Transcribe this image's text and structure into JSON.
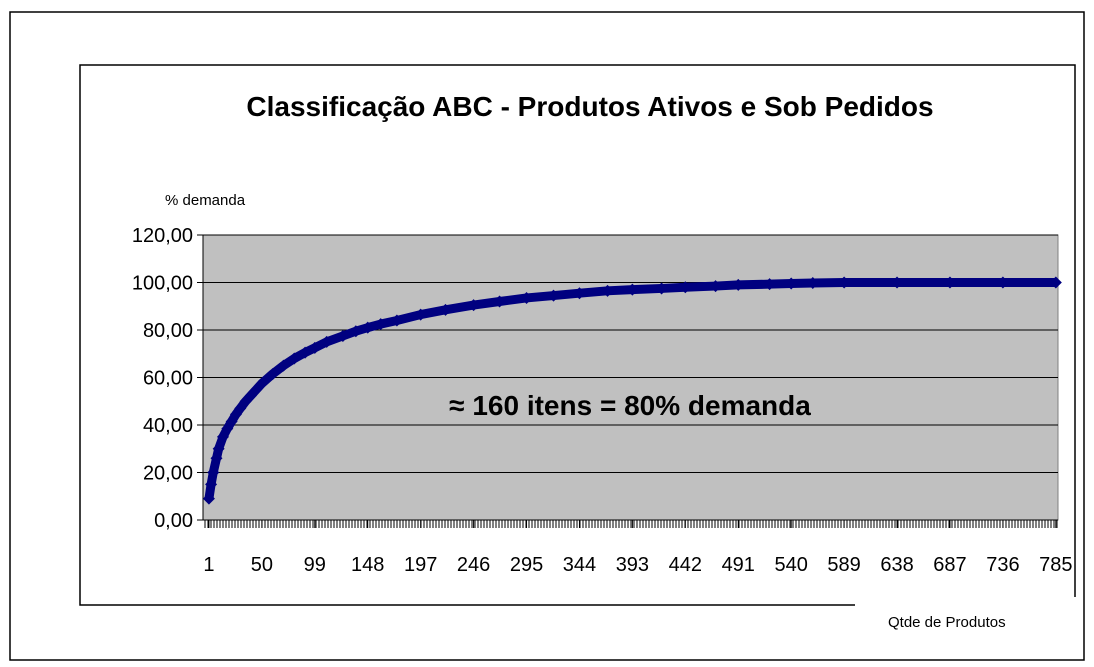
{
  "chart_data": {
    "type": "line",
    "title": "Classificação ABC - Produtos Ativos e Sob Pedidos",
    "y_label": "% demanda",
    "x_label": "Qtde de Produtos",
    "annotation": "≈ 160 itens = 80% demanda",
    "x": [
      1,
      3,
      5,
      8,
      10,
      14,
      18,
      22,
      26,
      30,
      35,
      40,
      45,
      50,
      60,
      70,
      80,
      90,
      99,
      110,
      125,
      137,
      148,
      160,
      175,
      197,
      220,
      246,
      270,
      295,
      320,
      344,
      370,
      393,
      420,
      442,
      470,
      491,
      520,
      540,
      560,
      589,
      638,
      687,
      736,
      785
    ],
    "series": [
      {
        "name": "% demanda",
        "color": "#000080",
        "values": [
          9,
          15,
          20,
          26,
          30,
          35,
          38.5,
          41.5,
          44.5,
          47,
          50,
          52.5,
          55,
          57.5,
          61.5,
          65,
          68,
          70.5,
          72.5,
          75,
          77.5,
          79.5,
          81,
          82.5,
          84,
          86.5,
          88.5,
          90.5,
          92,
          93.5,
          94.5,
          95.5,
          96.5,
          97,
          97.5,
          98,
          98.5,
          99,
          99.3,
          99.6,
          99.8,
          100,
          100,
          100,
          100,
          100
        ]
      }
    ],
    "xlim": [
      -4.5,
      787
    ],
    "xticks": [
      1,
      50,
      99,
      148,
      197,
      246,
      295,
      344,
      393,
      442,
      491,
      540,
      589,
      638,
      687,
      736,
      785
    ],
    "ylim": [
      0,
      120
    ],
    "yticks": [
      {
        "value": 0,
        "label": "0,00"
      },
      {
        "value": 20,
        "label": "20,00"
      },
      {
        "value": 40,
        "label": "40,00"
      },
      {
        "value": 60,
        "label": "60,00"
      },
      {
        "value": 80,
        "label": "80,00"
      },
      {
        "value": 100,
        "label": "100,00"
      },
      {
        "value": 120,
        "label": "120,00"
      }
    ],
    "grid": true
  }
}
